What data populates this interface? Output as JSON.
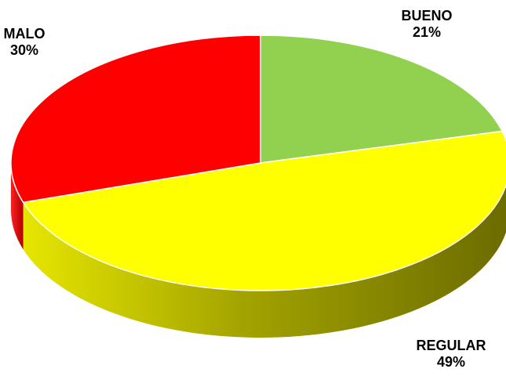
{
  "chart_data": {
    "type": "pie",
    "three_d": true,
    "slices": [
      {
        "label": "BUENO",
        "value": 21,
        "value_label": "21%",
        "color": "#92D050",
        "side_color": "#5f8a30"
      },
      {
        "label": "REGULAR",
        "value": 49,
        "value_label": "49%",
        "color": "#FFFF00",
        "side_color": "#6b6b00"
      },
      {
        "label": "MALO",
        "value": 30,
        "value_label": "30%",
        "color": "#FF0000",
        "side_color": "#b00000"
      }
    ],
    "legend": "none"
  }
}
